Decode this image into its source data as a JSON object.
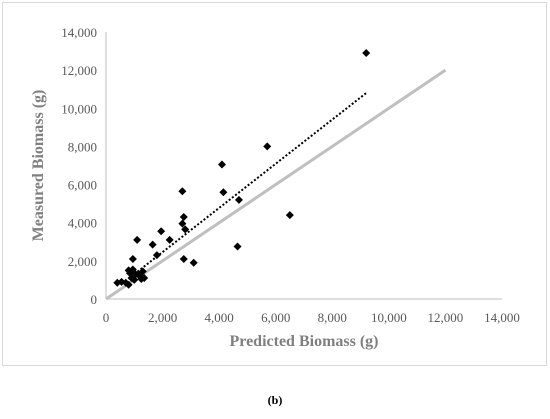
{
  "caption": "(b)",
  "colors": {
    "points": "#000000",
    "trendline": "#000000",
    "reference_line": "#bfbfbf",
    "axis": "#bfbfbf",
    "text": "#595959",
    "axis_title": "#7f7f7f"
  },
  "chart_data": {
    "type": "scatter",
    "title": "",
    "xlabel": "Predicted Biomass (g)",
    "ylabel": "Measured Biomass (g)",
    "xlim": [
      0,
      14000
    ],
    "ylim": [
      0,
      14000
    ],
    "xticks": [
      "0",
      "2,000",
      "4,000",
      "6,000",
      "8,000",
      "10,000",
      "12,000",
      "14,000"
    ],
    "yticks": [
      "0",
      "2,000",
      "4,000",
      "6,000",
      "8,000",
      "10,000",
      "12,000",
      "14,000"
    ],
    "grid": false,
    "legend": "none",
    "marker": "diamond",
    "series": [
      {
        "x": [
          9200,
          5700,
          4100,
          4150,
          4700,
          6500,
          4650,
          2700,
          2750,
          2700,
          2800,
          2750,
          3100,
          2250,
          1950,
          1650,
          1800,
          1100,
          950,
          1050,
          800,
          850,
          900,
          1200,
          1300,
          1250,
          1000,
          700,
          800,
          550,
          400,
          1150,
          1350,
          950
        ],
        "y": [
          12900,
          8000,
          7050,
          5600,
          5200,
          4400,
          2750,
          5650,
          4300,
          3950,
          3650,
          2100,
          1900,
          3100,
          3550,
          2850,
          2300,
          3100,
          2100,
          1300,
          1500,
          1350,
          1100,
          1200,
          1450,
          1050,
          1000,
          850,
          750,
          900,
          850,
          1300,
          1100,
          1550
        ]
      }
    ],
    "lines": [
      {
        "kind": "trendline",
        "style": "dotted",
        "from": [
          1000,
          1300
        ],
        "to": [
          9200,
          10800
        ]
      },
      {
        "kind": "reference",
        "style": "solid",
        "from": [
          0,
          0
        ],
        "to": [
          12000,
          12000
        ]
      }
    ]
  }
}
